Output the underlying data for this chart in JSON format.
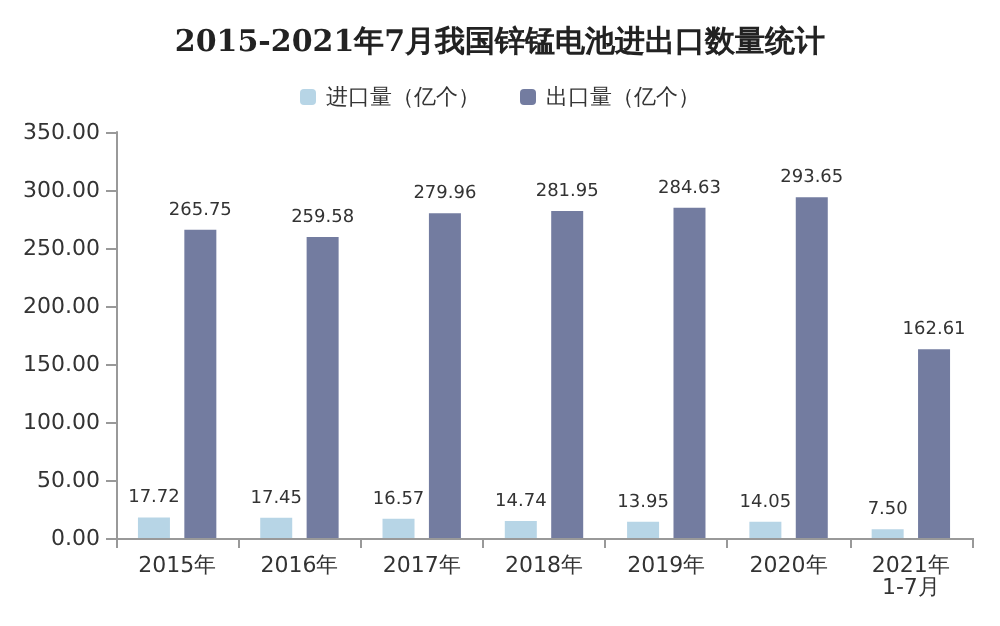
{
  "chart_data": {
    "type": "bar",
    "title": "2015-2021年7月我国锌锰电池进出口数量统计",
    "categories": [
      "2015年",
      "2016年",
      "2017年",
      "2018年",
      "2019年",
      "2020年",
      "2021年\n1-7月"
    ],
    "series": [
      {
        "name": "进口量（亿个）",
        "color": "#b7d5e6",
        "values": [
          17.72,
          17.45,
          16.57,
          14.74,
          13.95,
          14.05,
          7.5
        ],
        "value_labels": [
          "17.72",
          "17.45",
          "16.57",
          "14.74",
          "13.95",
          "14.05",
          "7.50"
        ]
      },
      {
        "name": "出口量（亿个）",
        "color": "#737ca0",
        "values": [
          265.75,
          259.58,
          279.96,
          281.95,
          284.63,
          293.65,
          162.61
        ],
        "value_labels": [
          "265.75",
          "259.58",
          "279.96",
          "281.95",
          "284.63",
          "293.65",
          "162.61"
        ]
      }
    ],
    "ylim": [
      0,
      350
    ],
    "yticks": [
      {
        "value": 0,
        "label": "0.00"
      },
      {
        "value": 50,
        "label": "50.00"
      },
      {
        "value": 100,
        "label": "100.00"
      },
      {
        "value": 150,
        "label": "150.00"
      },
      {
        "value": 200,
        "label": "200.00"
      },
      {
        "value": 250,
        "label": "250.00"
      },
      {
        "value": 300,
        "label": "300.00"
      },
      {
        "value": 350,
        "label": "350.00"
      }
    ],
    "grid": false,
    "legend": "top"
  }
}
